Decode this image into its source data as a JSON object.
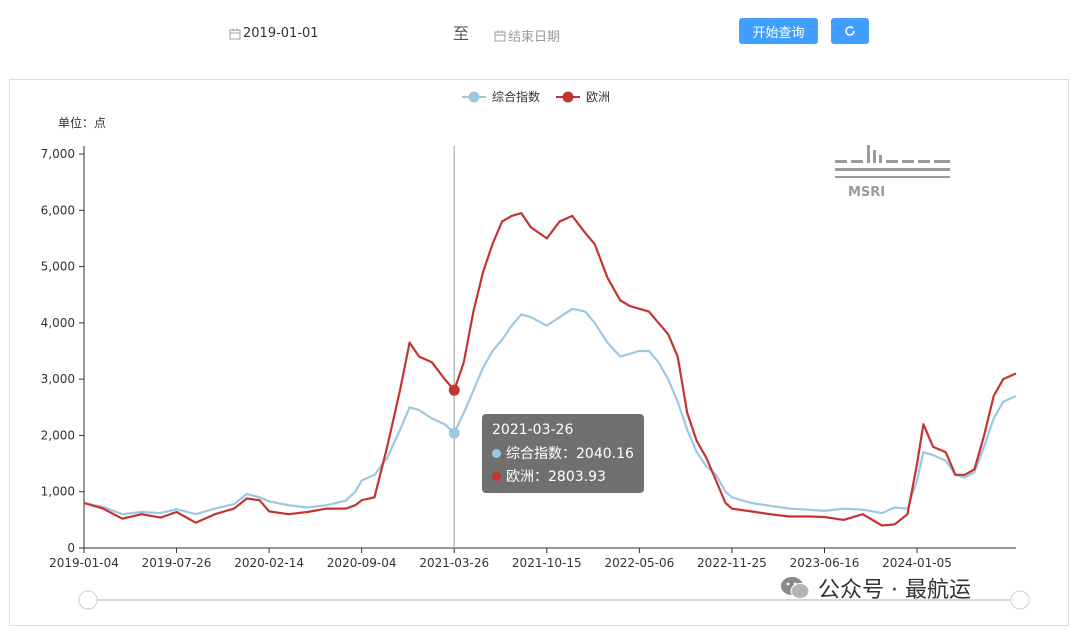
{
  "toolbar": {
    "start_date": "2019-01-01",
    "separator": "至",
    "end_placeholder": "结束日期",
    "query_label": "开始查询",
    "refresh_icon": "refresh-icon"
  },
  "watermark_text": "公众号 · 最航运",
  "logo_text": "MSRI",
  "tooltip": {
    "date": "2021-03-26",
    "rows": [
      {
        "label": "综合指数：2040.16",
        "color": "#9ec8e2"
      },
      {
        "label": "欧洲：2803.93",
        "color": "#c23531"
      }
    ]
  },
  "chart_data": {
    "type": "line",
    "unit_label": "单位：点",
    "x_ticks": [
      "2019-01-04",
      "2019-07-26",
      "2020-02-14",
      "2020-09-04",
      "2021-03-26",
      "2021-10-15",
      "2022-05-06",
      "2022-11-25",
      "2023-06-16",
      "2024-01-05"
    ],
    "y_ticks": [
      "0",
      "1,000",
      "2,000",
      "3,000",
      "4,000",
      "5,000",
      "6,000",
      "7,000"
    ],
    "ylim": [
      0,
      7000
    ],
    "xlim": [
      "2019-01-04",
      "2024-08-09"
    ],
    "legend_position": "top-center",
    "grid": false,
    "highlight_date": "2021-03-26",
    "series": [
      {
        "name": "综合指数",
        "color": "#9ec8e2",
        "points": [
          [
            "2019-01-04",
            800
          ],
          [
            "2019-02-15",
            730
          ],
          [
            "2019-03-29",
            600
          ],
          [
            "2019-05-10",
            640
          ],
          [
            "2019-06-21",
            620
          ],
          [
            "2019-07-26",
            690
          ],
          [
            "2019-09-06",
            600
          ],
          [
            "2019-10-18",
            700
          ],
          [
            "2019-11-29",
            780
          ],
          [
            "2019-12-27",
            960
          ],
          [
            "2020-01-24",
            900
          ],
          [
            "2020-02-14",
            830
          ],
          [
            "2020-03-27",
            760
          ],
          [
            "2020-05-08",
            720
          ],
          [
            "2020-06-19",
            760
          ],
          [
            "2020-07-31",
            840
          ],
          [
            "2020-08-21",
            1000
          ],
          [
            "2020-09-04",
            1200
          ],
          [
            "2020-10-02",
            1300
          ],
          [
            "2020-10-30",
            1600
          ],
          [
            "2020-11-27",
            2100
          ],
          [
            "2020-12-18",
            2500
          ],
          [
            "2021-01-08",
            2450
          ],
          [
            "2021-02-05",
            2300
          ],
          [
            "2021-03-05",
            2200
          ],
          [
            "2021-03-26",
            2040
          ],
          [
            "2021-04-16",
            2400
          ],
          [
            "2021-05-07",
            2800
          ],
          [
            "2021-05-28",
            3200
          ],
          [
            "2021-06-18",
            3500
          ],
          [
            "2021-07-09",
            3700
          ],
          [
            "2021-07-30",
            3950
          ],
          [
            "2021-08-20",
            4150
          ],
          [
            "2021-09-10",
            4100
          ],
          [
            "2021-10-15",
            3950
          ],
          [
            "2021-11-12",
            4100
          ],
          [
            "2021-12-10",
            4250
          ],
          [
            "2022-01-07",
            4200
          ],
          [
            "2022-01-28",
            4000
          ],
          [
            "2022-02-25",
            3650
          ],
          [
            "2022-03-25",
            3400
          ],
          [
            "2022-04-15",
            3450
          ],
          [
            "2022-05-06",
            3500
          ],
          [
            "2022-05-27",
            3500
          ],
          [
            "2022-06-17",
            3300
          ],
          [
            "2022-07-08",
            3000
          ],
          [
            "2022-07-29",
            2600
          ],
          [
            "2022-08-19",
            2100
          ],
          [
            "2022-09-09",
            1700
          ],
          [
            "2022-09-30",
            1450
          ],
          [
            "2022-10-21",
            1300
          ],
          [
            "2022-11-11",
            1000
          ],
          [
            "2022-11-25",
            900
          ],
          [
            "2023-01-06",
            800
          ],
          [
            "2023-02-17",
            750
          ],
          [
            "2023-03-31",
            700
          ],
          [
            "2023-05-12",
            680
          ],
          [
            "2023-06-16",
            660
          ],
          [
            "2023-07-28",
            700
          ],
          [
            "2023-09-08",
            680
          ],
          [
            "2023-10-20",
            620
          ],
          [
            "2023-11-17",
            720
          ],
          [
            "2023-12-15",
            700
          ],
          [
            "2024-01-05",
            1200
          ],
          [
            "2024-01-19",
            1700
          ],
          [
            "2024-02-09",
            1650
          ],
          [
            "2024-03-08",
            1550
          ],
          [
            "2024-03-29",
            1300
          ],
          [
            "2024-04-19",
            1250
          ],
          [
            "2024-05-10",
            1350
          ],
          [
            "2024-05-31",
            1800
          ],
          [
            "2024-06-21",
            2300
          ],
          [
            "2024-07-12",
            2600
          ],
          [
            "2024-08-09",
            2700
          ]
        ]
      },
      {
        "name": "欧洲",
        "color": "#c23531",
        "points": [
          [
            "2019-01-04",
            800
          ],
          [
            "2019-02-15",
            700
          ],
          [
            "2019-03-29",
            520
          ],
          [
            "2019-05-10",
            600
          ],
          [
            "2019-06-21",
            540
          ],
          [
            "2019-07-26",
            640
          ],
          [
            "2019-09-06",
            450
          ],
          [
            "2019-10-18",
            600
          ],
          [
            "2019-11-29",
            700
          ],
          [
            "2019-12-27",
            880
          ],
          [
            "2020-01-24",
            850
          ],
          [
            "2020-02-14",
            650
          ],
          [
            "2020-03-27",
            600
          ],
          [
            "2020-05-08",
            640
          ],
          [
            "2020-06-19",
            700
          ],
          [
            "2020-07-31",
            700
          ],
          [
            "2020-08-21",
            760
          ],
          [
            "2020-09-04",
            850
          ],
          [
            "2020-10-02",
            900
          ],
          [
            "2020-10-30",
            1800
          ],
          [
            "2020-11-27",
            2800
          ],
          [
            "2020-12-18",
            3650
          ],
          [
            "2021-01-08",
            3400
          ],
          [
            "2021-02-05",
            3300
          ],
          [
            "2021-03-05",
            3000
          ],
          [
            "2021-03-26",
            2804
          ],
          [
            "2021-04-16",
            3300
          ],
          [
            "2021-05-07",
            4200
          ],
          [
            "2021-05-28",
            4900
          ],
          [
            "2021-06-18",
            5400
          ],
          [
            "2021-07-09",
            5800
          ],
          [
            "2021-07-30",
            5900
          ],
          [
            "2021-08-20",
            5950
          ],
          [
            "2021-09-10",
            5700
          ],
          [
            "2021-10-15",
            5500
          ],
          [
            "2021-11-12",
            5800
          ],
          [
            "2021-12-10",
            5900
          ],
          [
            "2022-01-07",
            5600
          ],
          [
            "2022-01-28",
            5400
          ],
          [
            "2022-02-25",
            4800
          ],
          [
            "2022-03-25",
            4400
          ],
          [
            "2022-04-15",
            4300
          ],
          [
            "2022-05-06",
            4250
          ],
          [
            "2022-05-27",
            4200
          ],
          [
            "2022-06-17",
            4000
          ],
          [
            "2022-07-08",
            3800
          ],
          [
            "2022-07-29",
            3400
          ],
          [
            "2022-08-19",
            2400
          ],
          [
            "2022-09-09",
            1900
          ],
          [
            "2022-09-30",
            1600
          ],
          [
            "2022-10-21",
            1200
          ],
          [
            "2022-11-11",
            800
          ],
          [
            "2022-11-25",
            700
          ],
          [
            "2023-01-06",
            650
          ],
          [
            "2023-02-17",
            600
          ],
          [
            "2023-03-31",
            560
          ],
          [
            "2023-05-12",
            560
          ],
          [
            "2023-06-16",
            550
          ],
          [
            "2023-07-28",
            500
          ],
          [
            "2023-09-08",
            600
          ],
          [
            "2023-10-20",
            400
          ],
          [
            "2023-11-17",
            420
          ],
          [
            "2023-12-15",
            600
          ],
          [
            "2024-01-05",
            1500
          ],
          [
            "2024-01-19",
            2200
          ],
          [
            "2024-02-09",
            1800
          ],
          [
            "2024-03-08",
            1700
          ],
          [
            "2024-03-29",
            1300
          ],
          [
            "2024-04-19",
            1300
          ],
          [
            "2024-05-10",
            1400
          ],
          [
            "2024-05-31",
            2000
          ],
          [
            "2024-06-21",
            2700
          ],
          [
            "2024-07-12",
            3000
          ],
          [
            "2024-08-09",
            3100
          ]
        ]
      }
    ]
  }
}
